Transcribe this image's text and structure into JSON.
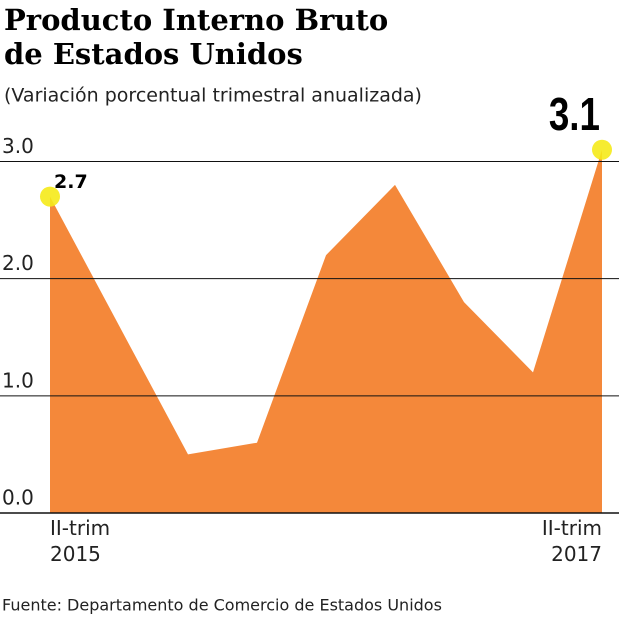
{
  "title": "Producto Interno Bruto de Estados Unidos",
  "subtitle": "(Variación porcentual trimestral anualizada)",
  "source": "Fuente: Departamento de Comercio de Estados Unidos",
  "chart_data": {
    "type": "area",
    "categories": [
      "II-trim 2015",
      null,
      null,
      null,
      null,
      null,
      null,
      null,
      "II-trim 2017"
    ],
    "values": [
      2.7,
      1.6,
      0.5,
      0.6,
      2.2,
      2.8,
      1.8,
      1.2,
      3.1
    ],
    "color": "#f4883a",
    "ylim": [
      0,
      3.2
    ],
    "yticks": [
      {
        "value": 0,
        "label": "0.0"
      },
      {
        "value": 1,
        "label": "1.0"
      },
      {
        "value": 2,
        "label": "2.0"
      },
      {
        "value": 3,
        "label": "3.0"
      }
    ],
    "grid": true
  }
}
